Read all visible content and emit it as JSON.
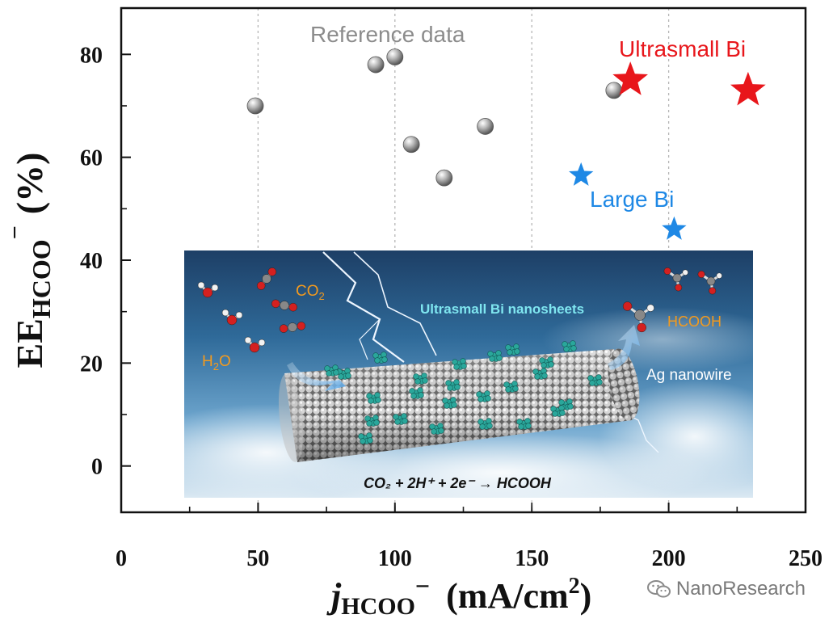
{
  "chart_data": {
    "type": "scatter",
    "title": "",
    "xlabel_main": "j",
    "xlabel_sub": "HCOO",
    "xlabel_sup": "−",
    "xlabel_unit": "(mA/cm",
    "xlabel_unit_sup": "2",
    "xlabel_unit_close": ")",
    "ylabel_main": "EE",
    "ylabel_sub": "HCOO",
    "ylabel_sup": "−",
    "ylabel_unit": "(%)",
    "xlim": [
      0,
      250
    ],
    "ylim": [
      -9,
      89
    ],
    "xticks": [
      0,
      50,
      100,
      150,
      200,
      250
    ],
    "yticks": [
      0,
      20,
      40,
      60,
      80
    ],
    "grid": "vertical dotted",
    "series": [
      {
        "name": "Reference data",
        "marker": "sphere",
        "color": "#8c8c8c",
        "points": [
          [
            49,
            70
          ],
          [
            93,
            78
          ],
          [
            100,
            79.5
          ],
          [
            106,
            62.5
          ],
          [
            118,
            56
          ],
          [
            133,
            66
          ],
          [
            180,
            73
          ]
        ]
      },
      {
        "name": "Ultrasmall Bi",
        "marker": "star",
        "color": "#e8161b",
        "points": [
          [
            186,
            75
          ],
          [
            229,
            73
          ]
        ]
      },
      {
        "name": "Large Bi",
        "marker": "star",
        "color": "#1e88e5",
        "points": [
          [
            168,
            56.5
          ],
          [
            202,
            46
          ]
        ]
      }
    ],
    "annotations": {
      "reference": "Reference data",
      "ultrasmall": "Ultrasmall Bi",
      "large": "Large Bi"
    },
    "inset": {
      "co2": "CO",
      "co2_sub": "2",
      "h2o": "H",
      "h2o_sub": "2",
      "h2o_end": "O",
      "nanosheets": "Ultrasmall Bi nanosheets",
      "hcooh": "HCOOH",
      "nanowire": "Ag nanowire",
      "equation": "CO₂ + 2H⁺ + 2e⁻ → HCOOH"
    }
  },
  "watermark": {
    "text": "NanoResearch",
    "icon": "wechat-icon"
  },
  "colors": {
    "reference": "#8c8c8c",
    "ultrasmall": "#e8161b",
    "large": "#1e88e5",
    "inset_label": "#f39a1e",
    "inset_cyan": "#7fe6f0"
  }
}
